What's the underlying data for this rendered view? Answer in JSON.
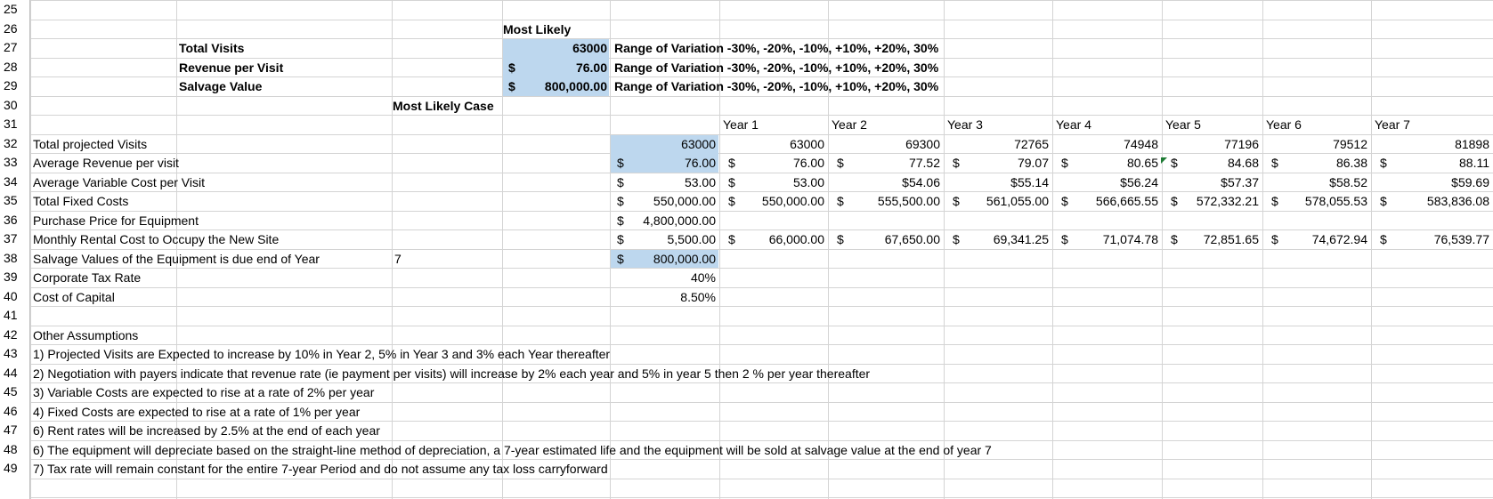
{
  "row_numbers": [
    "25",
    "26",
    "27",
    "28",
    "29",
    "30",
    "31",
    "32",
    "33",
    "34",
    "35",
    "36",
    "37",
    "38",
    "39",
    "40",
    "41",
    "42",
    "43",
    "44",
    "45",
    "46",
    "47",
    "48",
    "49"
  ],
  "top_section": {
    "most_likely_header": "Most Likely",
    "rows": [
      {
        "label": "Total Visits",
        "dollar": "",
        "value": "63000",
        "note": "Range of Variation -30%, -20%, -10%, +10%, +20%, 30%"
      },
      {
        "label": "Revenue per Visit",
        "dollar": "$",
        "value": "76.00",
        "note": "Range of Variation -30%, -20%, -10%, +10%, +20%, 30%"
      },
      {
        "label": "Salvage Value",
        "dollar": "$",
        "value": "800,000.00",
        "note": "Range of Variation -30%, -20%, -10%, +10%, +20%, 30%"
      }
    ]
  },
  "case_label": "Most Likely Case",
  "year_headers": [
    "Year 1",
    "Year 2",
    "Year 3",
    "Year 4",
    "Year 5",
    "Year 6",
    "Year 7"
  ],
  "table": [
    {
      "label": "Total projected Visits",
      "ml_dollar": "",
      "ml_value": "63000",
      "years": [
        [
          "",
          "63000"
        ],
        [
          "",
          "69300"
        ],
        [
          "",
          "72765"
        ],
        [
          "",
          "74948"
        ],
        [
          "",
          "77196"
        ],
        [
          "",
          "79512"
        ],
        [
          "",
          "81898"
        ]
      ]
    },
    {
      "label": "Average Revenue per visit",
      "ml_dollar": "$",
      "ml_value": "76.00",
      "years": [
        [
          "$",
          "76.00"
        ],
        [
          "$",
          "77.52"
        ],
        [
          "$",
          "79.07"
        ],
        [
          "$",
          "80.65"
        ],
        [
          "$",
          "84.68"
        ],
        [
          "$",
          "86.38"
        ],
        [
          "$",
          "88.11"
        ]
      ]
    },
    {
      "label": "Average Variable Cost per Visit",
      "ml_dollar": "$",
      "ml_value": "53.00",
      "years": [
        [
          "$",
          "53.00"
        ],
        [
          "",
          "$54.06"
        ],
        [
          "",
          "$55.14"
        ],
        [
          "",
          "$56.24"
        ],
        [
          "",
          "$57.37"
        ],
        [
          "",
          "$58.52"
        ],
        [
          "",
          "$59.69"
        ]
      ]
    },
    {
      "label": "Total Fixed Costs",
      "ml_dollar": "$",
      "ml_value": "550,000.00",
      "years": [
        [
          "$",
          "550,000.00"
        ],
        [
          "$",
          "555,500.00"
        ],
        [
          "$",
          "561,055.00"
        ],
        [
          "$",
          "566,665.55"
        ],
        [
          "$",
          "572,332.21"
        ],
        [
          "$",
          "578,055.53"
        ],
        [
          "$",
          "583,836.08"
        ]
      ]
    },
    {
      "label": "Purchase Price for Equipment",
      "ml_dollar": "$",
      "ml_value": "4,800,000.00",
      "years": []
    },
    {
      "label": "Monthly Rental Cost to Occupy the New Site",
      "ml_dollar": "$",
      "ml_value": "5,500.00",
      "years": [
        [
          "$",
          "66,000.00"
        ],
        [
          "$",
          "67,650.00"
        ],
        [
          "$",
          "69,341.25"
        ],
        [
          "$",
          "71,074.78"
        ],
        [
          "$",
          "72,851.65"
        ],
        [
          "$",
          "74,672.94"
        ],
        [
          "$",
          "76,539.77"
        ]
      ]
    },
    {
      "label": "Salvage Values of the Equipment is due end of Year",
      "extra": "7",
      "ml_dollar": "$",
      "ml_value": "800,000.00",
      "years": []
    },
    {
      "label": "Corporate Tax Rate",
      "ml_dollar": "",
      "ml_value": "40%",
      "years": []
    },
    {
      "label": "Cost of Capital",
      "ml_dollar": "",
      "ml_value": "8.50%",
      "years": []
    }
  ],
  "assumptions": {
    "title": "Other Assumptions",
    "items": [
      "1) Projected Visits are Expected to increase by 10% in Year 2, 5% in Year 3 and 3% each Year thereafter",
      "2)  Negotiation with payers indicate that revenue rate (ie payment per visits) will increase by 2% each year and 5% in year 5 then 2 % per year thereafter",
      "3)  Variable Costs are expected to rise at a rate of 2% per year",
      "4) Fixed Costs are expected to rise at a rate of 1% per year",
      "6) Rent rates will be increased by 2.5% at the end of each year",
      "6) The equipment will depreciate based on the straight-line method of depreciation, a 7-year estimated life and the equipment will be sold at salvage value at the end of year 7",
      "7)  Tax rate will remain constant for the entire 7-year Period and do not assume any tax loss carryforward"
    ]
  }
}
